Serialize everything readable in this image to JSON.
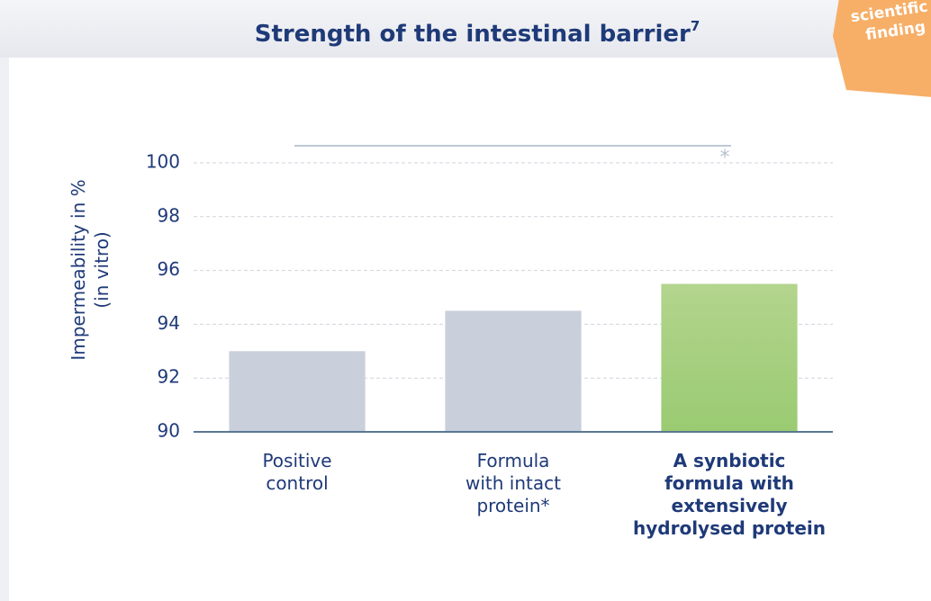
{
  "chart_data": {
    "type": "bar",
    "title": "Strength of the intestinal barrier",
    "title_superscript": "7",
    "badge": [
      "scientific",
      "finding"
    ],
    "ylabel": [
      "Impermeability in %",
      "(in vitro)"
    ],
    "categories": [
      [
        "Positive",
        "control"
      ],
      [
        "Formula",
        "with intact",
        "protein*"
      ],
      [
        "A synbiotic",
        "formula with",
        "extensively",
        "hydrolysed protein"
      ]
    ],
    "values": [
      93,
      94.5,
      95.5
    ],
    "colors": [
      "#c9cfdb",
      "#c9cfdb",
      "#a5cf7e"
    ],
    "highlight": 2,
    "significance": {
      "categories": [
        0,
        2
      ],
      "label": "*"
    },
    "ylim": [
      90,
      100
    ],
    "yticks": [
      90,
      92,
      94,
      96,
      98,
      100
    ],
    "grid": true
  }
}
